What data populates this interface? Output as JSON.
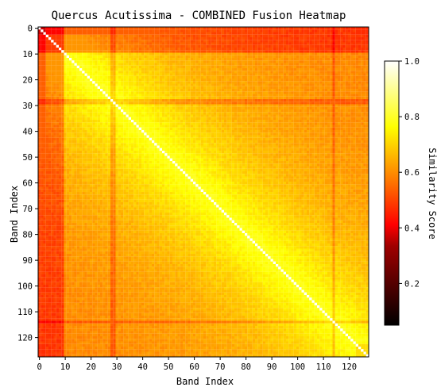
{
  "chart_data": {
    "type": "heatmap",
    "title": "Quercus Acutissima - COMBINED Fusion Heatmap",
    "xlabel": "Band Index",
    "ylabel": "Band Index",
    "size": 128,
    "xlim": [
      0,
      127
    ],
    "ylim": [
      0,
      127
    ],
    "x_ticks": [
      0,
      10,
      20,
      30,
      40,
      50,
      60,
      70,
      80,
      90,
      100,
      110,
      120
    ],
    "y_ticks": [
      0,
      10,
      20,
      30,
      40,
      50,
      60,
      70,
      80,
      90,
      100,
      110,
      120
    ],
    "colormap": "hot",
    "colorbar": {
      "label": "Similarity Score",
      "range": [
        0.05,
        1.0
      ],
      "ticks": [
        0.2,
        0.4,
        0.6,
        0.8,
        1.0
      ],
      "tick_labels": [
        "0.2",
        "0.4",
        "0.6",
        "0.8",
        "1.0"
      ]
    },
    "diagonal_value": 1.0,
    "dark_bands": [
      0,
      1,
      2,
      3,
      4,
      5,
      6,
      7,
      8,
      9
    ],
    "line_bands": [
      28,
      29,
      114
    ]
  }
}
